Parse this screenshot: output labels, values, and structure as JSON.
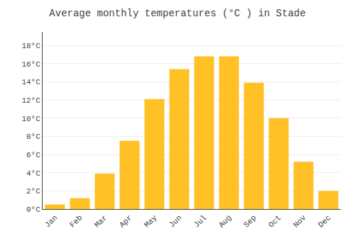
{
  "chart_data": {
    "type": "bar",
    "title": "Average monthly temperatures (°C ) in Stade",
    "categories": [
      "Jan",
      "Feb",
      "Mar",
      "Apr",
      "May",
      "Jun",
      "Jul",
      "Aug",
      "Sep",
      "Oct",
      "Nov",
      "Dec"
    ],
    "values": [
      0.5,
      1.2,
      3.9,
      7.5,
      12.1,
      15.4,
      16.8,
      16.8,
      13.9,
      10.0,
      5.2,
      2.0
    ],
    "color": "#FFC125",
    "ylim": [
      0,
      19.5
    ],
    "yticks": [
      {
        "value": 0,
        "label": "0°C"
      },
      {
        "value": 2,
        "label": "2°C"
      },
      {
        "value": 4,
        "label": "4°C"
      },
      {
        "value": 6,
        "label": "6°C"
      },
      {
        "value": 8,
        "label": "8°C"
      },
      {
        "value": 10,
        "label": "10°C"
      },
      {
        "value": 12,
        "label": "12°C"
      },
      {
        "value": 14,
        "label": "14°C"
      },
      {
        "value": 16,
        "label": "16°C"
      },
      {
        "value": 18,
        "label": "18°C"
      }
    ],
    "grid": true
  }
}
